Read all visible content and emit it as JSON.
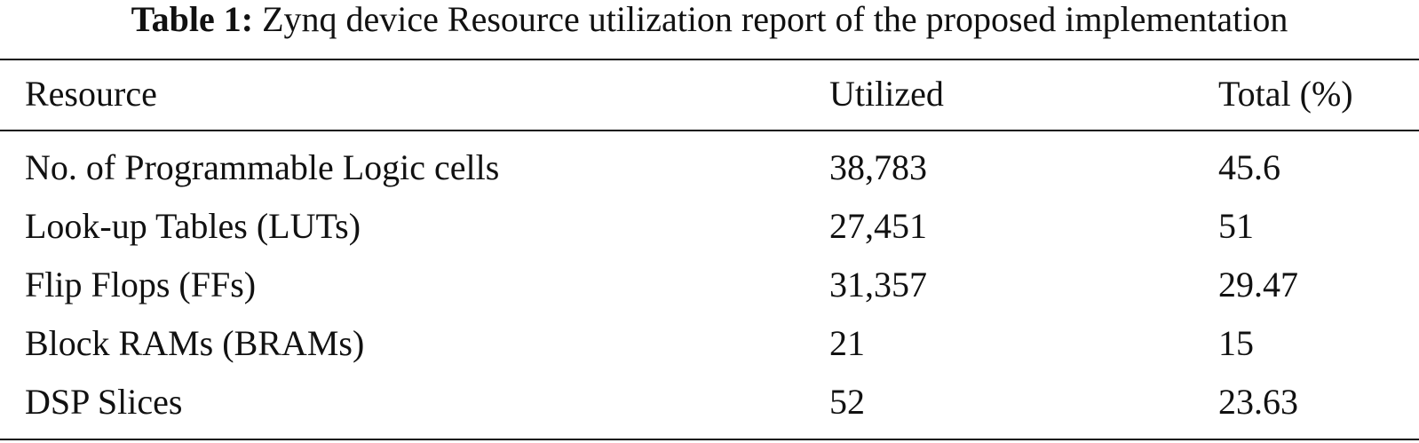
{
  "caption": {
    "label": "Table 1:",
    "text": "Zynq device Resource utilization report of the proposed implementation"
  },
  "table": {
    "headers": [
      "Resource",
      "Utilized",
      "Total (%)"
    ],
    "rows": [
      [
        "No. of Programmable Logic cells",
        "38,783",
        "45.6"
      ],
      [
        "Look-up Tables (LUTs)",
        "27,451",
        "51"
      ],
      [
        "Flip Flops (FFs)",
        "31,357",
        "29.47"
      ],
      [
        "Block RAMs (BRAMs)",
        "21",
        "15"
      ],
      [
        "DSP Slices",
        "52",
        "23.63"
      ]
    ]
  }
}
